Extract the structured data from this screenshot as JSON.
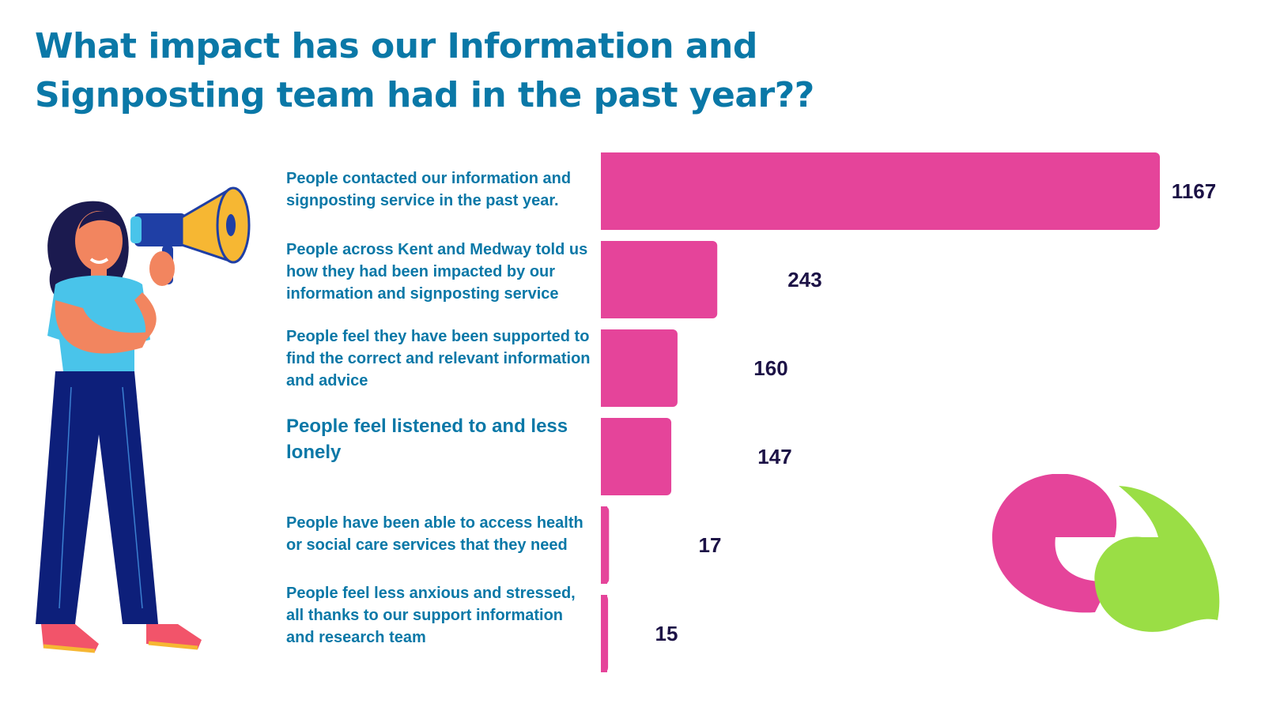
{
  "header": {
    "title": "What impact has our Information and Signposting team had in the past year??"
  },
  "colors": {
    "title": "#0a78a7",
    "label": "#0a78a7",
    "bar": "#e5449a",
    "value": "#1c1246",
    "logo_pink": "#e5449a",
    "logo_green": "#9ade45"
  },
  "illustration": {
    "icon": "woman-with-megaphone-icon"
  },
  "logo": {
    "icon": "ea-logo-icon"
  },
  "chart_data": {
    "type": "bar",
    "orientation": "horizontal",
    "title": "What impact has our Information and Signposting team had in the past year??",
    "categories": [
      "People contacted our information and signposting service in the past year.",
      "People across Kent and Medway told us how they had been impacted by our information and signposting service",
      "People feel they have been supported to find the correct and relevant information and advice",
      "People feel listened to and less lonely",
      "People have been able to access health or social care services that they need",
      "People feel less anxious and stressed, all thanks to our support information and research team"
    ],
    "values": [
      1167,
      243,
      160,
      147,
      17,
      15
    ],
    "value_labels": [
      "1167",
      "243",
      "160",
      "147",
      "17",
      "15"
    ],
    "xlim": [
      0,
      1167
    ],
    "grid": false,
    "legend": "none"
  }
}
